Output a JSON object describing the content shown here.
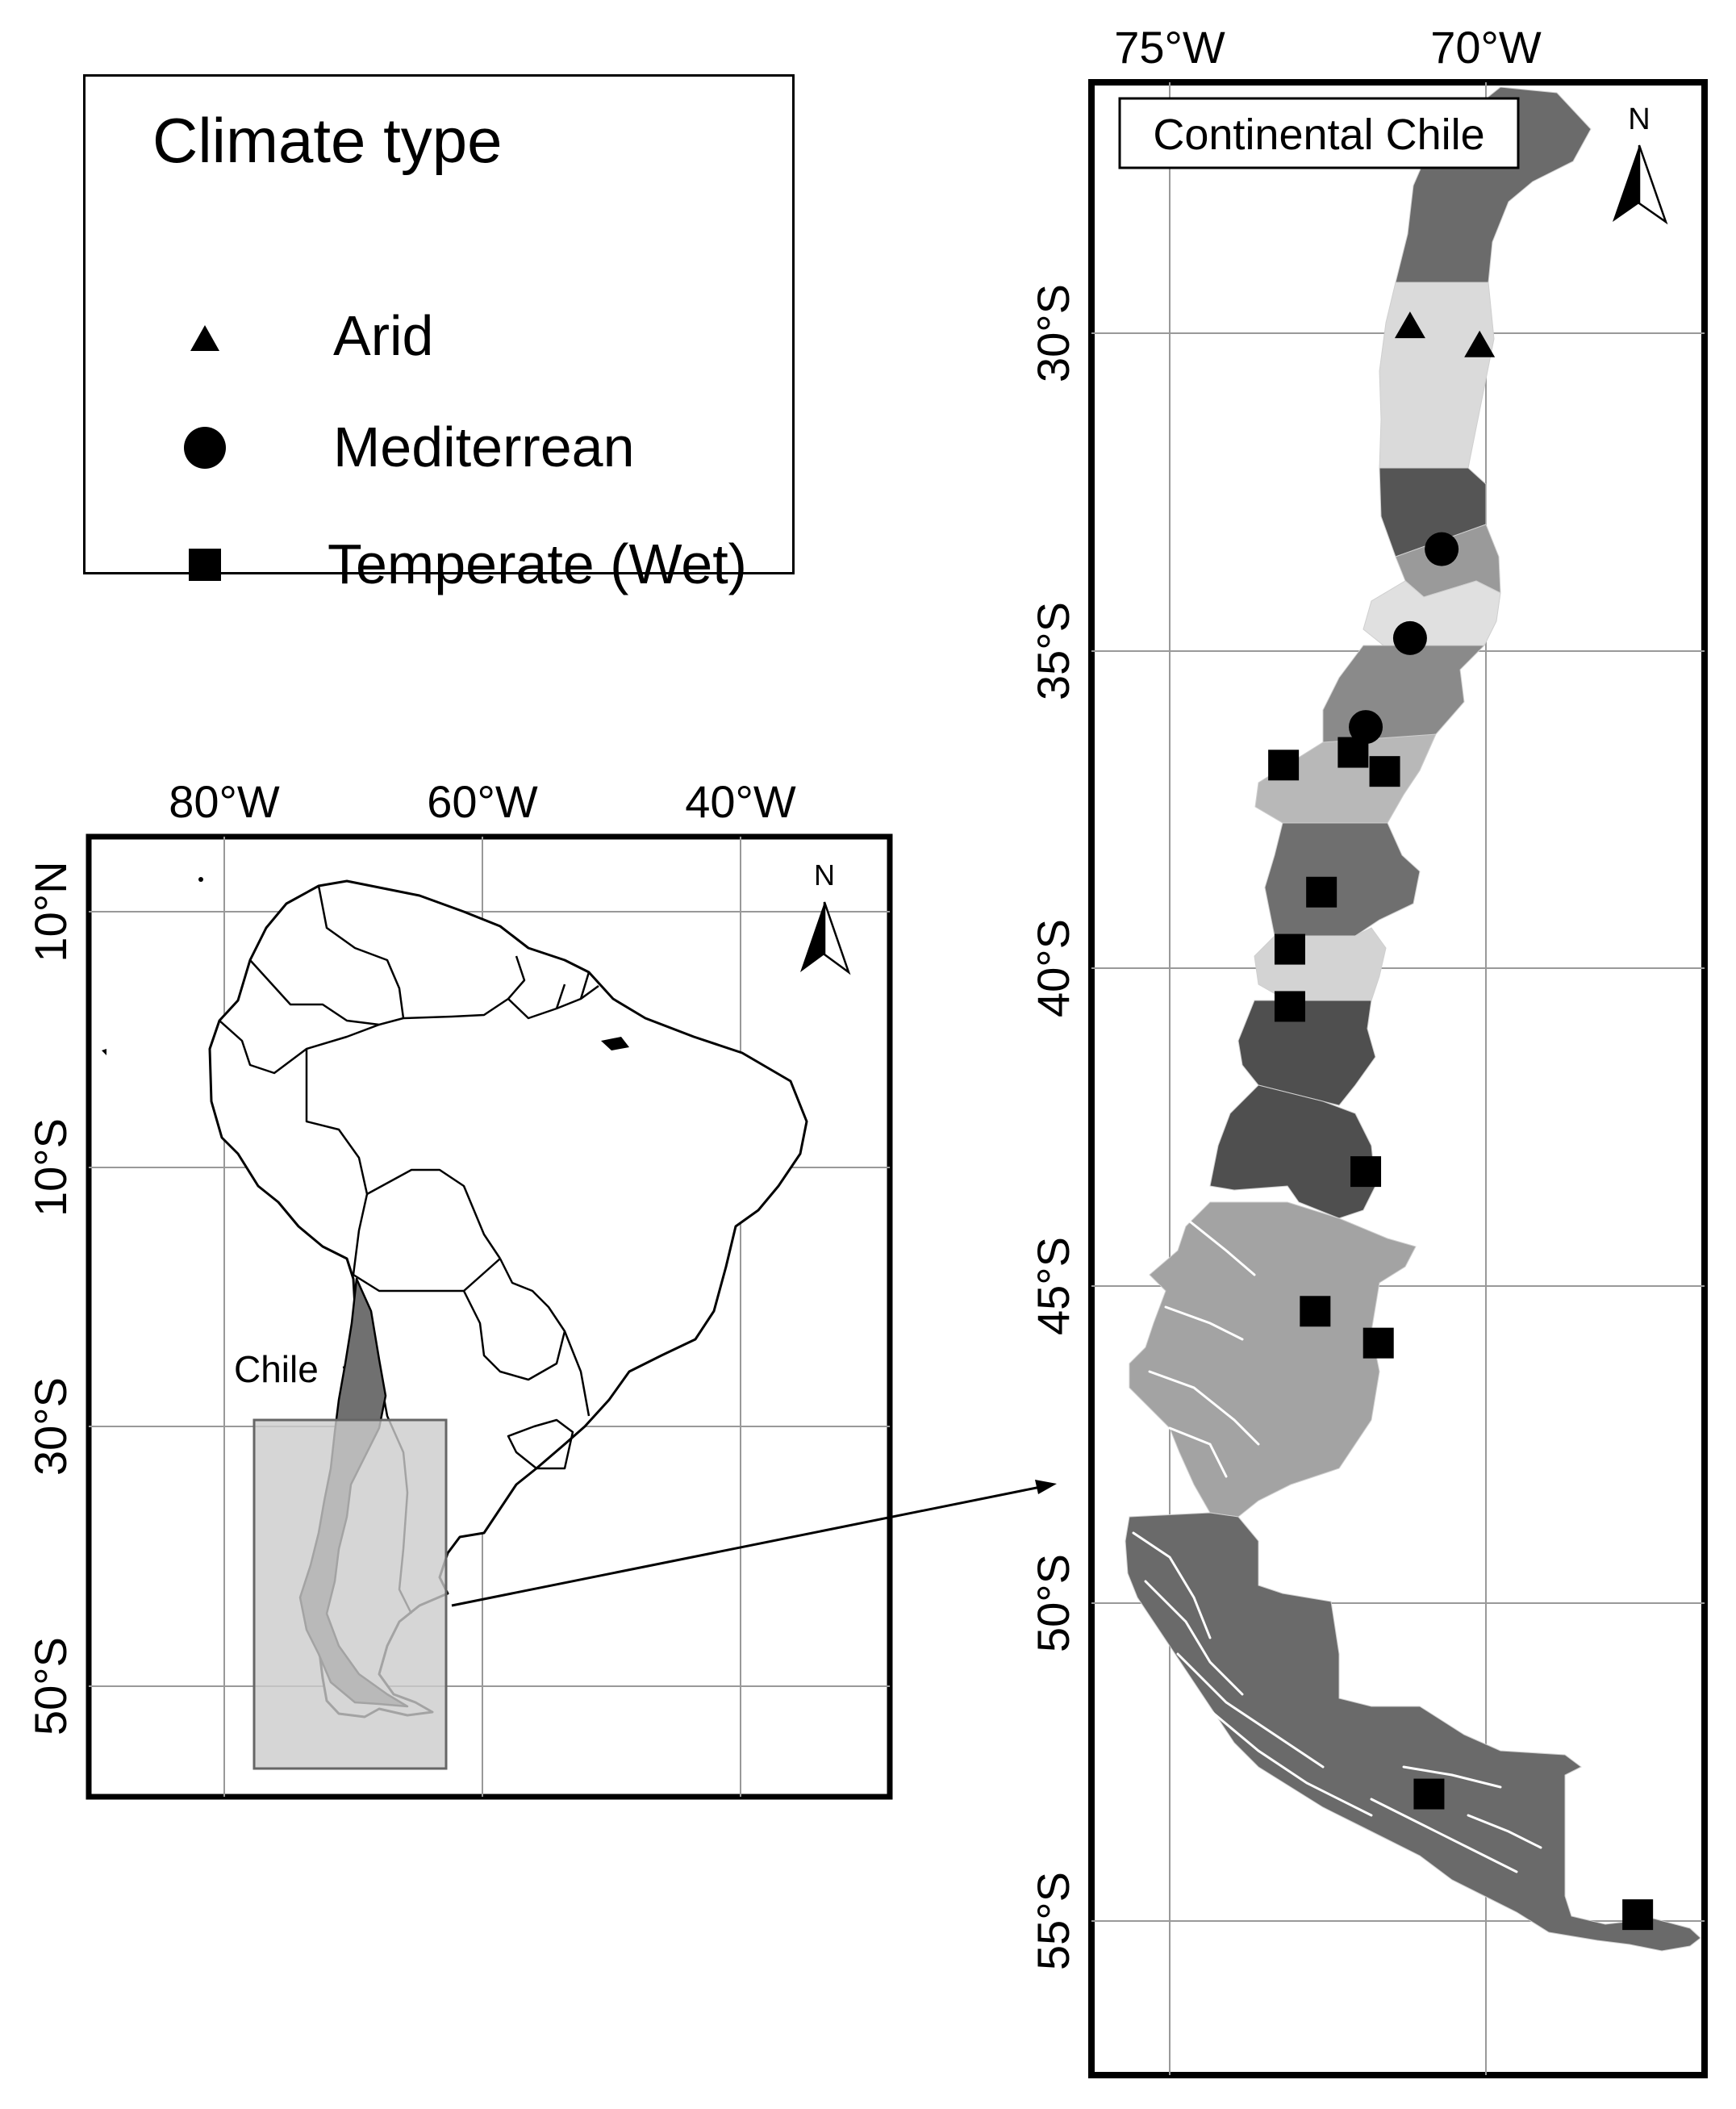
{
  "legend": {
    "title": "Climate type",
    "items": [
      {
        "label": "Arid",
        "symbol": "triangle-icon"
      },
      {
        "label": "Mediterrean",
        "symbol": "circle-icon"
      },
      {
        "label": "Temperate (Wet)",
        "symbol": "square-icon"
      }
    ]
  },
  "south_america_map": {
    "lon_labels": [
      "80°W",
      "60°W",
      "40°W"
    ],
    "lat_labels": [
      "10°N",
      "10°S",
      "30°S",
      "50°S"
    ],
    "country_label": "Chile",
    "north_label": "N"
  },
  "chile_map": {
    "title": "Continental Chile",
    "lon_labels": [
      "75°W",
      "70°W"
    ],
    "lat_labels": [
      "30°S",
      "35°S",
      "40°S",
      "45°S",
      "50°S",
      "55°S"
    ],
    "north_label": "N",
    "stations": [
      {
        "type": "arid",
        "lon": -71.2,
        "lat": -29.9
      },
      {
        "type": "arid",
        "lon": -70.1,
        "lat": -30.2
      },
      {
        "type": "mediterranean",
        "lon": -70.7,
        "lat": -33.4
      },
      {
        "type": "mediterranean",
        "lon": -71.2,
        "lat": -34.8
      },
      {
        "type": "mediterranean",
        "lon": -71.9,
        "lat": -36.2
      },
      {
        "type": "temperate",
        "lon": -73.2,
        "lat": -36.8
      },
      {
        "type": "temperate",
        "lon": -72.1,
        "lat": -36.6
      },
      {
        "type": "temperate",
        "lon": -71.6,
        "lat": -36.9
      },
      {
        "type": "temperate",
        "lon": -72.6,
        "lat": -38.8
      },
      {
        "type": "temperate",
        "lon": -73.1,
        "lat": -39.7
      },
      {
        "type": "temperate",
        "lon": -73.1,
        "lat": -40.6
      },
      {
        "type": "temperate",
        "lon": -71.9,
        "lat": -43.2
      },
      {
        "type": "temperate",
        "lon": -72.7,
        "lat": -45.4
      },
      {
        "type": "temperate",
        "lon": -71.7,
        "lat": -45.9
      },
      {
        "type": "temperate",
        "lon": -70.9,
        "lat": -53.0
      },
      {
        "type": "temperate",
        "lon": -67.6,
        "lat": -54.9
      }
    ]
  }
}
